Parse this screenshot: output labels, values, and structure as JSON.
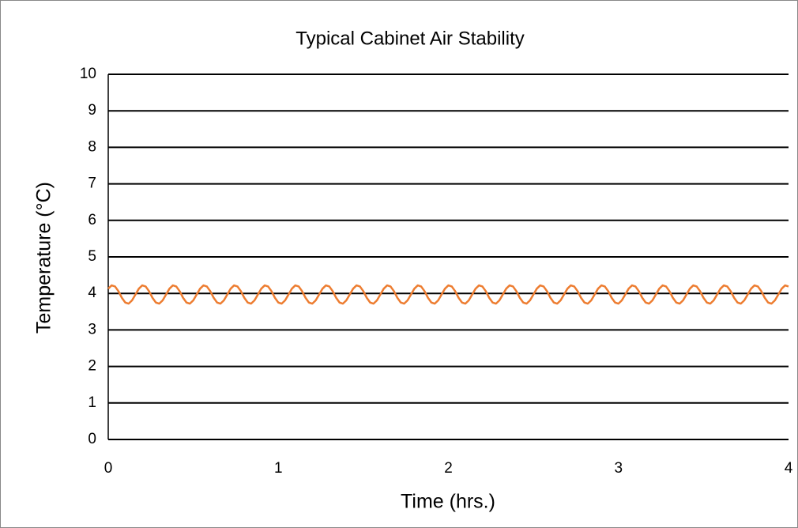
{
  "chart_data": {
    "type": "line",
    "title": "Typical Cabinet Air Stability",
    "x_label": "Time (hrs.)",
    "y_label": "Temperature (°C)",
    "xlim": [
      0,
      4
    ],
    "xticks": [
      0,
      1,
      2,
      3,
      4
    ],
    "ylim": [
      0,
      10
    ],
    "yticks": [
      0,
      1,
      2,
      3,
      4,
      5,
      6,
      7,
      8,
      9,
      10
    ],
    "grid": true,
    "x": [
      0,
      0.02,
      0.04,
      0.06,
      0.08,
      0.1,
      0.12,
      0.14,
      0.16,
      0.18,
      0.2,
      0.22,
      0.24,
      0.26,
      0.28,
      0.3,
      0.32,
      0.34,
      0.36,
      0.38,
      0.4,
      0.42,
      0.44,
      0.46,
      0.48,
      0.5,
      0.52,
      0.54,
      0.56,
      0.58,
      0.6,
      0.62,
      0.64,
      0.66,
      0.68,
      0.7,
      0.72,
      0.74,
      0.76,
      0.78,
      0.8,
      0.82,
      0.84,
      0.86,
      0.88,
      0.9,
      0.92,
      0.94,
      0.96,
      0.98,
      1,
      1.02,
      1.04,
      1.06,
      1.08,
      1.1,
      1.12,
      1.14,
      1.16,
      1.18,
      1.2,
      1.22,
      1.24,
      1.26,
      1.28,
      1.3,
      1.32,
      1.34,
      1.36,
      1.38,
      1.4,
      1.42,
      1.44,
      1.46,
      1.48,
      1.5,
      1.52,
      1.54,
      1.56,
      1.58,
      1.6,
      1.62,
      1.64,
      1.66,
      1.68,
      1.7,
      1.72,
      1.74,
      1.76,
      1.78,
      1.8,
      1.82,
      1.84,
      1.86,
      1.88,
      1.9,
      1.92,
      1.94,
      1.96,
      1.98,
      2,
      2.02,
      2.04,
      2.06,
      2.08,
      2.1,
      2.12,
      2.14,
      2.16,
      2.18,
      2.2,
      2.22,
      2.24,
      2.26,
      2.28,
      2.3,
      2.32,
      2.34,
      2.36,
      2.38,
      2.4,
      2.42,
      2.44,
      2.46,
      2.48,
      2.5,
      2.52,
      2.54,
      2.56,
      2.58,
      2.6,
      2.62,
      2.64,
      2.66,
      2.68,
      2.7,
      2.72,
      2.74,
      2.76,
      2.78,
      2.8,
      2.82,
      2.84,
      2.86,
      2.88,
      2.9,
      2.92,
      2.94,
      2.96,
      2.98,
      3,
      3.02,
      3.04,
      3.06,
      3.08,
      3.1,
      3.12,
      3.14,
      3.16,
      3.18,
      3.2,
      3.22,
      3.24,
      3.26,
      3.28,
      3.3,
      3.32,
      3.34,
      3.36,
      3.38,
      3.4,
      3.42,
      3.44,
      3.46,
      3.48,
      3.5,
      3.52,
      3.54,
      3.56,
      3.58,
      3.6,
      3.62,
      3.64,
      3.66,
      3.68,
      3.7,
      3.72,
      3.74,
      3.76,
      3.78,
      3.8,
      3.82,
      3.84,
      3.86,
      3.88,
      3.9,
      3.92,
      3.94,
      3.96,
      3.98,
      4
    ],
    "series": [
      {
        "color": "#ed7d31",
        "values": [
          4.13,
          4.22,
          4.19,
          4.06,
          3.88,
          3.75,
          3.72,
          3.81,
          3.97,
          4.13,
          4.22,
          4.19,
          4.06,
          3.88,
          3.75,
          3.72,
          3.81,
          3.97,
          4.13,
          4.22,
          4.19,
          4.06,
          3.88,
          3.75,
          3.72,
          3.81,
          3.97,
          4.13,
          4.22,
          4.19,
          4.06,
          3.88,
          3.75,
          3.72,
          3.81,
          3.97,
          4.13,
          4.22,
          4.19,
          4.06,
          3.88,
          3.75,
          3.72,
          3.81,
          3.97,
          4.13,
          4.22,
          4.19,
          4.06,
          3.88,
          3.75,
          3.72,
          3.81,
          3.97,
          4.13,
          4.22,
          4.19,
          4.06,
          3.88,
          3.75,
          3.72,
          3.81,
          3.97,
          4.13,
          4.22,
          4.19,
          4.06,
          3.88,
          3.75,
          3.72,
          3.81,
          3.97,
          4.13,
          4.22,
          4.19,
          4.06,
          3.88,
          3.75,
          3.72,
          3.81,
          3.97,
          4.13,
          4.22,
          4.19,
          4.06,
          3.88,
          3.75,
          3.72,
          3.81,
          3.97,
          4.13,
          4.22,
          4.19,
          4.06,
          3.88,
          3.75,
          3.72,
          3.81,
          3.97,
          4.13,
          4.22,
          4.19,
          4.06,
          3.88,
          3.75,
          3.72,
          3.81,
          3.97,
          4.13,
          4.22,
          4.19,
          4.06,
          3.88,
          3.75,
          3.72,
          3.81,
          3.97,
          4.13,
          4.22,
          4.19,
          4.06,
          3.88,
          3.75,
          3.72,
          3.81,
          3.97,
          4.13,
          4.22,
          4.19,
          4.06,
          3.88,
          3.75,
          3.72,
          3.81,
          3.97,
          4.13,
          4.22,
          4.19,
          4.06,
          3.88,
          3.75,
          3.72,
          3.81,
          3.97,
          4.13,
          4.22,
          4.19,
          4.06,
          3.88,
          3.75,
          3.72,
          3.81,
          3.97,
          4.13,
          4.22,
          4.19,
          4.06,
          3.88,
          3.75,
          3.72,
          3.81,
          3.97,
          4.13,
          4.22,
          4.19,
          4.06,
          3.88,
          3.75,
          3.72,
          3.81,
          3.97,
          4.13,
          4.22,
          4.19,
          4.06,
          3.88,
          3.75,
          3.72,
          3.81,
          3.97,
          4.13,
          4.22,
          4.19,
          4.06,
          3.88,
          3.75,
          3.72,
          3.81,
          3.97,
          4.13,
          4.22,
          4.19,
          4.06,
          3.88,
          3.75,
          3.72,
          3.81,
          3.97,
          4.13,
          4.22,
          4.19
        ]
      }
    ]
  }
}
